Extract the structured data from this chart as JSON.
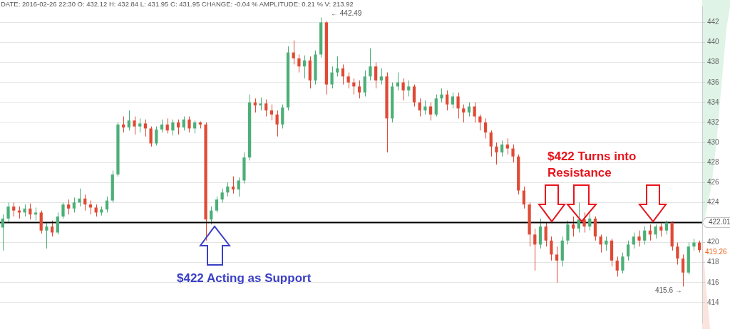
{
  "chart_data": {
    "type": "candlestick",
    "categories": [
      null,
      null,
      null,
      null,
      null,
      null,
      null,
      null,
      null,
      null,
      null,
      null,
      null,
      null,
      null,
      null,
      null,
      null,
      null,
      null,
      null,
      null,
      null,
      null,
      null,
      null,
      null,
      null,
      null,
      null,
      null,
      null,
      null,
      null,
      null,
      null,
      null,
      null,
      null,
      null,
      null,
      null,
      null,
      null,
      null,
      null,
      null,
      null,
      null,
      null,
      null,
      null,
      null,
      null,
      null,
      null,
      null,
      null,
      null,
      null,
      null,
      null,
      null,
      null,
      null,
      null,
      null,
      null,
      null,
      null,
      null,
      null,
      null,
      null,
      null,
      null,
      null,
      null,
      null,
      null,
      null,
      null,
      null,
      null,
      null,
      null,
      null,
      null,
      null,
      null,
      null,
      null,
      null,
      null,
      null,
      null,
      null,
      null,
      null,
      null,
      null,
      null,
      null,
      null,
      null,
      null,
      null,
      null,
      null,
      null,
      null,
      null,
      null,
      null,
      null,
      null,
      null,
      null,
      null,
      null,
      null,
      null,
      null,
      null,
      null,
      null,
      null,
      null
    ],
    "ohlc": [
      [
        421.5,
        422.8,
        419.2,
        422.4
      ],
      [
        422.4,
        424.0,
        422.0,
        423.6
      ],
      [
        423.6,
        424.0,
        422.6,
        423.2
      ],
      [
        423.2,
        423.6,
        422.4,
        423.0
      ],
      [
        423.0,
        423.8,
        422.6,
        423.4
      ],
      [
        423.4,
        423.9,
        422.3,
        422.8
      ],
      [
        422.8,
        423.5,
        422.2,
        423.0
      ],
      [
        423.0,
        423.2,
        420.9,
        421.2
      ],
      [
        421.2,
        422.0,
        419.4,
        421.6
      ],
      [
        421.6,
        422.2,
        420.6,
        421.0
      ],
      [
        421.0,
        423.0,
        420.8,
        422.6
      ],
      [
        422.6,
        424.0,
        422.4,
        423.8
      ],
      [
        423.8,
        424.3,
        422.8,
        423.4
      ],
      [
        423.4,
        424.5,
        423.0,
        424.0
      ],
      [
        424.0,
        425.4,
        423.6,
        424.4
      ],
      [
        424.4,
        424.8,
        423.2,
        423.8
      ],
      [
        423.8,
        424.2,
        422.8,
        423.5
      ],
      [
        423.5,
        423.8,
        422.6,
        423.0
      ],
      [
        423.0,
        423.6,
        422.7,
        423.3
      ],
      [
        423.3,
        424.6,
        423.0,
        424.2
      ],
      [
        424.2,
        427.2,
        424.0,
        426.8
      ],
      [
        426.8,
        432.0,
        426.6,
        431.8
      ],
      [
        431.8,
        432.6,
        431.0,
        431.5
      ],
      [
        431.5,
        433.2,
        431.2,
        432.2
      ],
      [
        432.2,
        432.6,
        430.8,
        431.6
      ],
      [
        431.6,
        432.4,
        431.0,
        431.9
      ],
      [
        431.9,
        432.3,
        430.6,
        431.4
      ],
      [
        431.4,
        431.6,
        429.6,
        429.9
      ],
      [
        429.9,
        431.6,
        429.7,
        431.3
      ],
      [
        431.3,
        432.3,
        431.0,
        431.8
      ],
      [
        431.8,
        432.4,
        430.9,
        431.2
      ],
      [
        431.2,
        432.3,
        430.7,
        432.0
      ],
      [
        432.0,
        432.3,
        430.8,
        431.5
      ],
      [
        431.5,
        432.6,
        431.2,
        432.3
      ],
      [
        432.3,
        432.6,
        431.0,
        431.4
      ],
      [
        431.4,
        432.2,
        430.9,
        432.0
      ],
      [
        432.0,
        432.1,
        431.4,
        431.8
      ],
      [
        431.8,
        432.0,
        420.2,
        422.3
      ],
      [
        422.3,
        423.6,
        421.8,
        423.2
      ],
      [
        423.2,
        424.6,
        423.0,
        424.3
      ],
      [
        424.3,
        425.4,
        424.0,
        425.0
      ],
      [
        425.0,
        426.0,
        424.6,
        425.6
      ],
      [
        425.6,
        426.6,
        424.9,
        425.3
      ],
      [
        425.3,
        426.5,
        424.6,
        426.2
      ],
      [
        426.2,
        429.0,
        425.9,
        428.5
      ],
      [
        428.5,
        434.8,
        428.2,
        434.0
      ],
      [
        434.0,
        434.4,
        433.0,
        433.7
      ],
      [
        433.7,
        434.5,
        433.2,
        433.9
      ],
      [
        433.9,
        434.3,
        432.6,
        433.2
      ],
      [
        433.2,
        433.8,
        432.2,
        432.8
      ],
      [
        432.8,
        433.2,
        430.6,
        431.8
      ],
      [
        431.8,
        433.8,
        431.4,
        433.5
      ],
      [
        433.5,
        439.6,
        433.2,
        439.0
      ],
      [
        439.0,
        440.2,
        437.8,
        438.4
      ],
      [
        438.4,
        438.8,
        437.0,
        437.6
      ],
      [
        437.6,
        438.7,
        436.4,
        438.2
      ],
      [
        438.2,
        438.6,
        435.4,
        436.2
      ],
      [
        436.2,
        439.2,
        435.8,
        438.8
      ],
      [
        438.8,
        442.49,
        438.5,
        442.0
      ],
      [
        442.0,
        442.1,
        434.8,
        435.8
      ],
      [
        435.8,
        437.6,
        435.4,
        437.0
      ],
      [
        437.0,
        438.6,
        436.6,
        437.4
      ],
      [
        437.4,
        437.8,
        435.8,
        436.6
      ],
      [
        436.6,
        437.0,
        435.4,
        436.0
      ],
      [
        436.0,
        436.4,
        434.8,
        435.6
      ],
      [
        435.6,
        436.2,
        434.4,
        435.0
      ],
      [
        435.0,
        437.2,
        434.6,
        436.6
      ],
      [
        436.6,
        439.4,
        436.2,
        437.6
      ],
      [
        437.6,
        438.0,
        435.4,
        436.2
      ],
      [
        436.2,
        437.4,
        435.8,
        436.6
      ],
      [
        436.6,
        437.0,
        429.0,
        432.4
      ],
      [
        432.4,
        436.0,
        432.0,
        435.6
      ],
      [
        435.6,
        437.0,
        435.2,
        436.0
      ],
      [
        436.0,
        436.4,
        434.2,
        435.2
      ],
      [
        435.2,
        436.2,
        434.6,
        435.6
      ],
      [
        435.6,
        435.8,
        433.6,
        434.0
      ],
      [
        434.0,
        434.4,
        432.6,
        433.2
      ],
      [
        433.2,
        434.2,
        432.8,
        433.6
      ],
      [
        433.6,
        434.0,
        432.2,
        432.8
      ],
      [
        432.8,
        434.8,
        432.6,
        434.4
      ],
      [
        434.4,
        435.4,
        434.0,
        434.8
      ],
      [
        434.8,
        435.2,
        433.2,
        433.8
      ],
      [
        433.8,
        435.0,
        433.4,
        434.6
      ],
      [
        434.6,
        435.0,
        432.4,
        433.4
      ],
      [
        433.4,
        433.8,
        432.0,
        433.0
      ],
      [
        433.0,
        434.0,
        432.6,
        433.6
      ],
      [
        433.6,
        434.0,
        432.0,
        432.6
      ],
      [
        432.6,
        432.8,
        431.2,
        432.0
      ],
      [
        432.0,
        432.4,
        430.4,
        431.0
      ],
      [
        431.0,
        431.2,
        428.6,
        429.6
      ],
      [
        429.6,
        430.0,
        427.8,
        429.0
      ],
      [
        429.0,
        430.2,
        428.6,
        429.8
      ],
      [
        429.8,
        430.4,
        428.8,
        429.4
      ],
      [
        429.4,
        429.8,
        428.0,
        428.6
      ],
      [
        428.6,
        428.8,
        424.8,
        425.2
      ],
      [
        425.2,
        425.6,
        423.4,
        423.8
      ],
      [
        423.8,
        424.0,
        419.6,
        420.8
      ],
      [
        420.8,
        421.4,
        417.2,
        419.8
      ],
      [
        419.8,
        422.4,
        419.4,
        421.6
      ],
      [
        421.6,
        422.0,
        419.6,
        420.2
      ],
      [
        420.2,
        420.6,
        418.2,
        418.8
      ],
      [
        418.8,
        419.6,
        416.0,
        418.2
      ],
      [
        418.2,
        420.6,
        417.6,
        420.2
      ],
      [
        420.2,
        422.2,
        419.8,
        421.8
      ],
      [
        421.8,
        422.6,
        420.6,
        421.4
      ],
      [
        421.4,
        424.0,
        421.0,
        422.3
      ],
      [
        422.3,
        423.0,
        421.0,
        421.6
      ],
      [
        421.6,
        422.9,
        421.2,
        422.4
      ],
      [
        422.4,
        422.6,
        420.2,
        420.6
      ],
      [
        420.6,
        420.8,
        419.0,
        419.8
      ],
      [
        419.8,
        420.6,
        419.2,
        420.2
      ],
      [
        420.2,
        420.4,
        417.6,
        418.2
      ],
      [
        418.2,
        418.6,
        416.6,
        417.2
      ],
      [
        417.2,
        419.0,
        416.9,
        418.6
      ],
      [
        418.6,
        420.2,
        418.2,
        419.8
      ],
      [
        419.8,
        421.0,
        419.4,
        420.6
      ],
      [
        420.6,
        421.2,
        419.6,
        420.2
      ],
      [
        420.2,
        421.6,
        419.8,
        421.2
      ],
      [
        421.2,
        421.8,
        420.2,
        420.8
      ],
      [
        420.8,
        421.8,
        420.4,
        421.6
      ],
      [
        421.6,
        421.9,
        420.6,
        421.2
      ],
      [
        421.2,
        422.2,
        420.8,
        422.0
      ],
      [
        422.0,
        422.1,
        419.2,
        419.6
      ],
      [
        419.6,
        420.0,
        417.8,
        418.4
      ],
      [
        418.4,
        418.8,
        415.6,
        417.0
      ],
      [
        417.0,
        420.0,
        416.8,
        419.6
      ],
      [
        419.6,
        420.4,
        419.2,
        420.0
      ],
      [
        420.0,
        420.2,
        419.0,
        419.26
      ]
    ],
    "colors": [
      "#4caf78",
      "#4caf78",
      "#e04a35",
      "#e04a35",
      "#4caf78",
      "#e04a35",
      "#4caf78",
      "#e04a35",
      "#4caf78",
      "#e04a35",
      "#4caf78",
      "#4caf78",
      "#e04a35",
      "#4caf78",
      "#4caf78",
      "#e04a35",
      "#e04a35",
      "#e04a35",
      "#4caf78",
      "#4caf78",
      "#4caf78",
      "#4caf78",
      "#e04a35",
      "#4caf78",
      "#e04a35",
      "#4caf78",
      "#e04a35",
      "#e04a35",
      "#4caf78",
      "#4caf78",
      "#e04a35",
      "#4caf78",
      "#e04a35",
      "#4caf78",
      "#e04a35",
      "#4caf78",
      "#e04a35",
      "#e04a35",
      "#4caf78",
      "#4caf78",
      "#4caf78",
      "#4caf78",
      "#e04a35",
      "#4caf78",
      "#4caf78",
      "#4caf78",
      "#e04a35",
      "#4caf78",
      "#e04a35",
      "#e04a35",
      "#e04a35",
      "#4caf78",
      "#4caf78",
      "#e04a35",
      "#e04a35",
      "#4caf78",
      "#e04a35",
      "#4caf78",
      "#4caf78",
      "#e04a35",
      "#4caf78",
      "#4caf78",
      "#e04a35",
      "#e04a35",
      "#e04a35",
      "#e04a35",
      "#4caf78",
      "#4caf78",
      "#e04a35",
      "#4caf78",
      "#e04a35",
      "#4caf78",
      "#4caf78",
      "#e04a35",
      "#4caf78",
      "#e04a35",
      "#e04a35",
      "#4caf78",
      "#e04a35",
      "#4caf78",
      "#4caf78",
      "#e04a35",
      "#4caf78",
      "#e04a35",
      "#e04a35",
      "#4caf78",
      "#e04a35",
      "#e04a35",
      "#e04a35",
      "#e04a35",
      "#e04a35",
      "#4caf78",
      "#e04a35",
      "#e04a35",
      "#e04a35",
      "#e04a35",
      "#e04a35",
      "#e04a35",
      "#4caf78",
      "#e04a35",
      "#e04a35",
      "#e04a35",
      "#4caf78",
      "#4caf78",
      "#e04a35",
      "#4caf78",
      "#e04a35",
      "#4caf78",
      "#e04a35",
      "#e04a35",
      "#4caf78",
      "#e04a35",
      "#e04a35",
      "#4caf78",
      "#4caf78",
      "#4caf78",
      "#e04a35",
      "#4caf78",
      "#e04a35",
      "#4caf78",
      "#e04a35",
      "#4caf78",
      "#e04a35",
      "#e04a35",
      "#e04a35",
      "#4caf78",
      "#4caf78",
      "#e04a35"
    ],
    "ylim": [
      412,
      443.6
    ],
    "yticks": [
      414,
      416,
      418,
      420,
      424,
      426,
      428,
      430,
      432,
      434,
      436,
      438,
      440,
      442
    ],
    "grid": "y",
    "tick_labels": "y",
    "ref_lines": [
      {
        "axis": "y",
        "value": 422.01,
        "label": "422.01",
        "color": "#000000"
      }
    ],
    "annotations": [
      "DATE: 2016-02-26  22:30  O: 432.12  H: 432.84  L: 431.95  C: 431.95  CHANGE: -0.04 %  AMPLITUDE: 0.21 %  V: 213.92",
      "← 442.49",
      "415.6 →",
      "419.26",
      "$422 Acting as Support",
      "$422 Turns into Resistance"
    ]
  }
}
